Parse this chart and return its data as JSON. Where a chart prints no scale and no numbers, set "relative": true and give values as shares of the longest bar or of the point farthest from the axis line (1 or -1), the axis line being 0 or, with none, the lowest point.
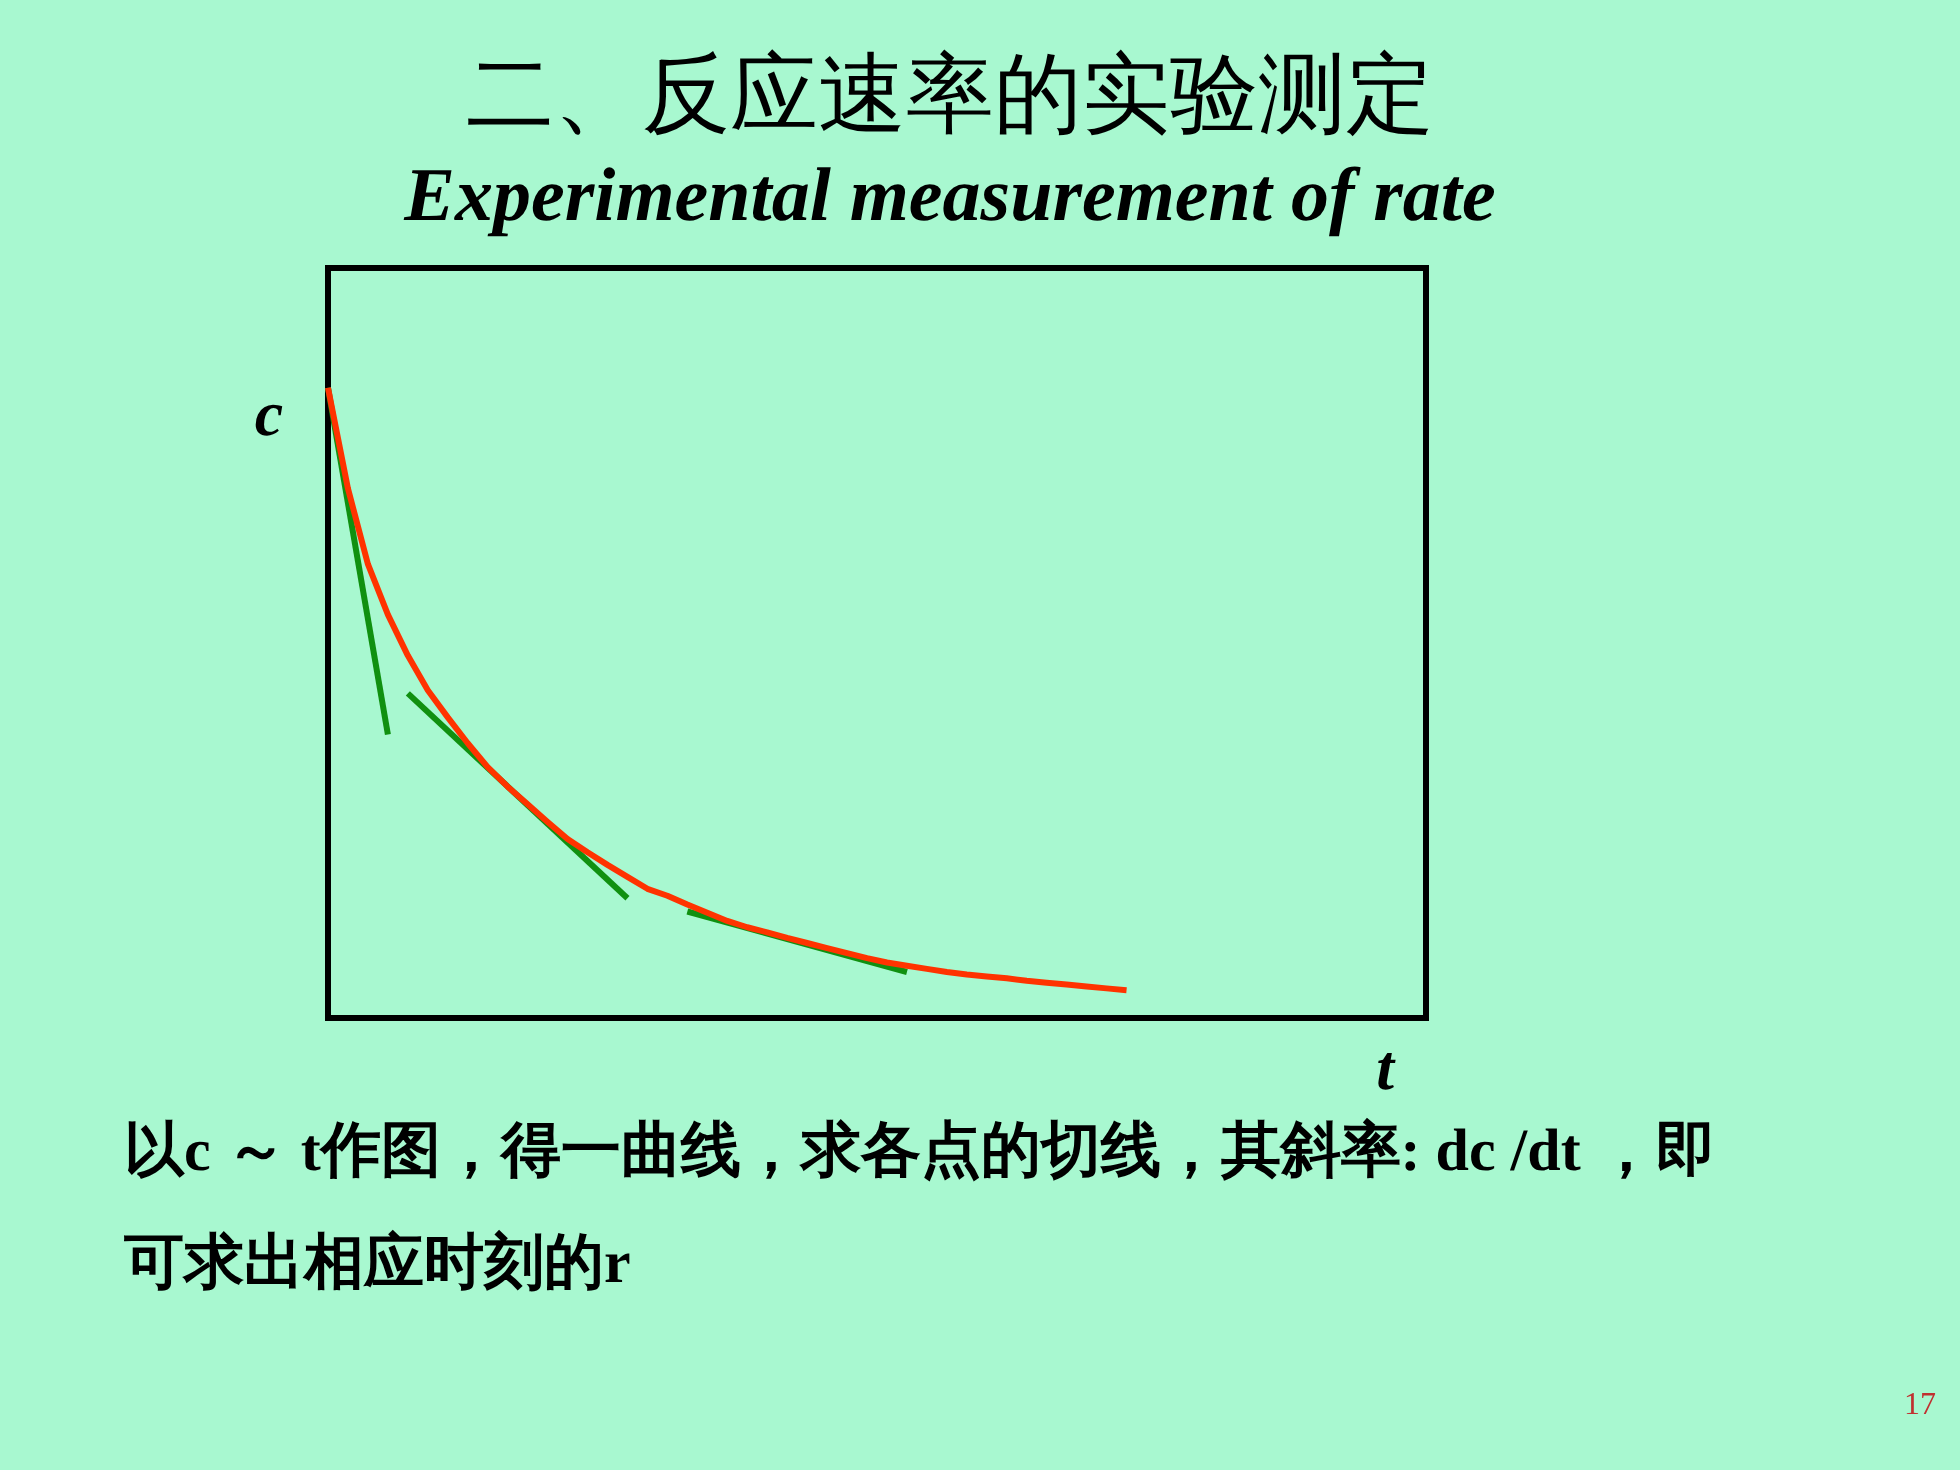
{
  "chart_data": {
    "type": "line",
    "title": "二、反应速率的实验测定",
    "subtitle": "Experimental measurement of rate",
    "xlabel": "t",
    "ylabel": "c",
    "relative": true,
    "legend": false,
    "categories": [
      null,
      null,
      null,
      null,
      null,
      null,
      null,
      null,
      null,
      null,
      null,
      null,
      null,
      null,
      null,
      null,
      null,
      null,
      null,
      null,
      null,
      null,
      null,
      null,
      null,
      null,
      null,
      null,
      null,
      null,
      null,
      null,
      null,
      null,
      null,
      null,
      null,
      null,
      null,
      null,
      null,
      null,
      null,
      null,
      null,
      null,
      null,
      null,
      null,
      null,
      null,
      null,
      null,
      null,
      null,
      null
    ],
    "series": [
      {
        "color": "#ff3300",
        "values": [
          1.0,
          0.84,
          0.72,
          0.64,
          0.575,
          0.52,
          0.477,
          0.436,
          0.398,
          0.367,
          0.339,
          0.311,
          0.284,
          0.263,
          0.243,
          0.224,
          0.205,
          0.194,
          0.18,
          0.167,
          0.154,
          0.144,
          0.136,
          0.127,
          0.119,
          0.111,
          0.103,
          0.095,
          0.088,
          0.083,
          0.078,
          0.073,
          0.069,
          0.066,
          0.063,
          0.059,
          0.056,
          0.053,
          0.05,
          0.047,
          0.044,
          null,
          null,
          null,
          null,
          null,
          null,
          null,
          null,
          null,
          null,
          null,
          null,
          null,
          null,
          null
        ]
      },
      {
        "color": "#109010",
        "values": [
          1.0,
          null,
          null,
          0.45,
          null,
          null,
          null,
          null,
          null,
          null,
          null,
          null,
          null,
          null,
          null,
          null,
          null,
          null,
          null,
          null,
          null,
          null,
          null,
          null,
          null,
          null,
          null,
          null,
          null,
          null,
          null,
          null,
          null,
          null,
          null,
          null,
          null,
          null,
          null,
          null,
          null,
          null,
          null,
          null,
          null,
          null,
          null,
          null,
          null,
          null,
          null,
          null,
          null,
          null,
          null,
          null
        ]
      },
      {
        "color": "#109010",
        "values": [
          null,
          null,
          null,
          null,
          0.515,
          null,
          null,
          null,
          null,
          null,
          null,
          null,
          null,
          null,
          null,
          0.19,
          null,
          null,
          null,
          null,
          null,
          null,
          null,
          null,
          null,
          null,
          null,
          null,
          null,
          null,
          null,
          null,
          null,
          null,
          null,
          null,
          null,
          null,
          null,
          null,
          null,
          null,
          null,
          null,
          null,
          null,
          null,
          null,
          null,
          null,
          null,
          null,
          null,
          null,
          null,
          null
        ]
      },
      {
        "color": "#109010",
        "values": [
          null,
          null,
          null,
          null,
          null,
          null,
          null,
          null,
          null,
          null,
          null,
          null,
          null,
          null,
          null,
          null,
          null,
          null,
          0.169,
          null,
          null,
          null,
          null,
          null,
          null,
          null,
          null,
          null,
          null,
          0.073,
          null,
          null,
          null,
          null,
          null,
          null,
          null,
          null,
          null,
          null,
          null,
          null,
          null,
          null,
          null,
          null,
          null,
          null,
          null,
          null,
          null,
          null,
          null,
          null,
          null,
          null
        ]
      }
    ],
    "annotations": [
      "以c ～ t作图，得一曲线，求各点的切线，其斜率: dc /dt ，即可求出相应时刻的r",
      "17"
    ]
  }
}
